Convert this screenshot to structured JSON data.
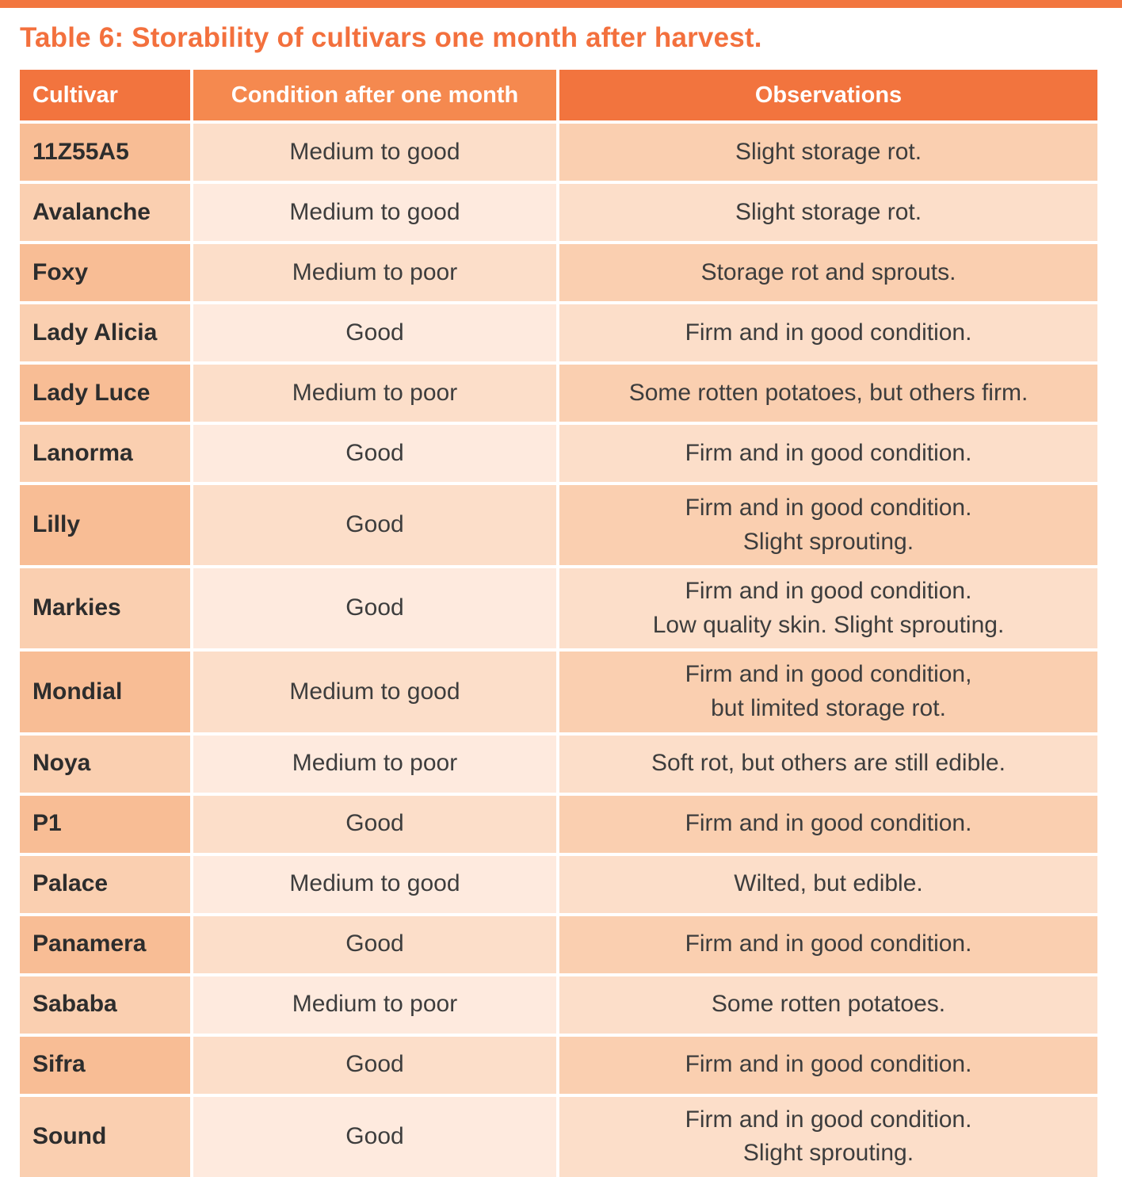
{
  "page": {
    "title": "Table 6: Storability of cultivars one month after harvest."
  },
  "colors": {
    "accent_orange": "#F2763F",
    "header_cell_orange": "#F2743E",
    "header_cell_light_orange": "#F5894F",
    "row_tint_1": "#F8BD95",
    "row_tint_2": "#FACFB0",
    "row_tint_3": "#FCDEC9",
    "row_tint_4": "#FEEADE",
    "title_text": "#F3703D",
    "header_text": "#FFFFFF",
    "cultivar_text": "#2D2D2D",
    "body_text": "#3D3D3D"
  },
  "table": {
    "columns": [
      "Cultivar",
      "Condition after one month",
      "Observations"
    ],
    "rows": [
      {
        "cultivar": "11Z55A5",
        "condition": "Medium to good",
        "observations": "Slight storage rot."
      },
      {
        "cultivar": "Avalanche",
        "condition": "Medium to good",
        "observations": "Slight storage rot."
      },
      {
        "cultivar": "Foxy",
        "condition": "Medium to poor",
        "observations": "Storage rot and sprouts."
      },
      {
        "cultivar": "Lady Alicia",
        "condition": "Good",
        "observations": "Firm and in good condition."
      },
      {
        "cultivar": "Lady Luce",
        "condition": "Medium to poor",
        "observations": "Some rotten potatoes, but others firm."
      },
      {
        "cultivar": "Lanorma",
        "condition": "Good",
        "observations": "Firm and in good condition."
      },
      {
        "cultivar": "Lilly",
        "condition": "Good",
        "observations": "Firm and in good condition.\nSlight sprouting."
      },
      {
        "cultivar": "Markies",
        "condition": "Good",
        "observations": "Firm and in good condition.\nLow quality skin. Slight sprouting."
      },
      {
        "cultivar": "Mondial",
        "condition": "Medium to good",
        "observations": "Firm and in good condition,\nbut limited storage rot."
      },
      {
        "cultivar": "Noya",
        "condition": "Medium to poor",
        "observations": "Soft rot, but others are still edible."
      },
      {
        "cultivar": "P1",
        "condition": "Good",
        "observations": "Firm and in good condition."
      },
      {
        "cultivar": "Palace",
        "condition": "Medium to good",
        "observations": "Wilted, but edible."
      },
      {
        "cultivar": "Panamera",
        "condition": "Good",
        "observations": "Firm and in good condition."
      },
      {
        "cultivar": "Sababa",
        "condition": "Medium to poor",
        "observations": "Some rotten potatoes."
      },
      {
        "cultivar": "Sifra",
        "condition": "Good",
        "observations": "Firm and in good condition."
      },
      {
        "cultivar": "Sound",
        "condition": "Good",
        "observations": "Firm and in good condition.\nSlight sprouting."
      }
    ]
  }
}
